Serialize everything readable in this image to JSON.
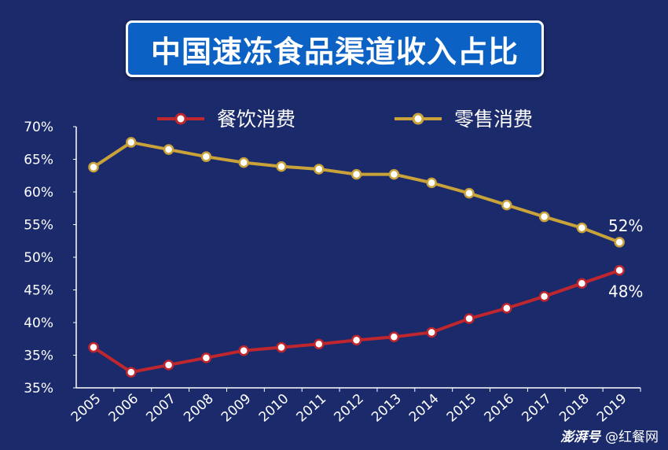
{
  "colors": {
    "background": "#1b2a6b",
    "title_box": "#0b61c4",
    "axis": "#ffffff",
    "series_restaurant": "#c0262d",
    "series_retail": "#c9a33a",
    "marker_fill": "#ffffff"
  },
  "chart_data": {
    "type": "line",
    "title": "中国速冻食品渠道收入占比",
    "xlabel": "",
    "ylabel": "",
    "categories": [
      "2005",
      "2006",
      "2007",
      "2008",
      "2009",
      "2010",
      "2011",
      "2012",
      "2013",
      "2014",
      "2015",
      "2016",
      "2017",
      "2018",
      "2019"
    ],
    "y_tick_labels": [
      "35%",
      "35%",
      "40%",
      "45%",
      "50%",
      "55%",
      "60%",
      "65%",
      "70%"
    ],
    "ylim": [
      30,
      70
    ],
    "grid": false,
    "legend_position": "top",
    "series": [
      {
        "name": "餐饮消费",
        "color": "#c0262d",
        "values": [
          36.2,
          32.4,
          33.5,
          34.6,
          35.7,
          36.2,
          36.7,
          37.3,
          37.8,
          38.5,
          40.6,
          42.2,
          44.0,
          46.0,
          48.0
        ]
      },
      {
        "name": "零售消费",
        "color": "#c9a33a",
        "values": [
          63.8,
          67.6,
          66.5,
          65.4,
          64.5,
          63.9,
          63.5,
          62.7,
          62.7,
          61.4,
          59.8,
          58.0,
          56.2,
          54.5,
          52.3
        ]
      }
    ],
    "annotations": [
      {
        "series": 1,
        "index": 14,
        "text": "52%"
      },
      {
        "series": 0,
        "index": 14,
        "text": "48%"
      }
    ]
  },
  "watermark": {
    "logo": "澎湃号",
    "text": "@红餐网"
  }
}
